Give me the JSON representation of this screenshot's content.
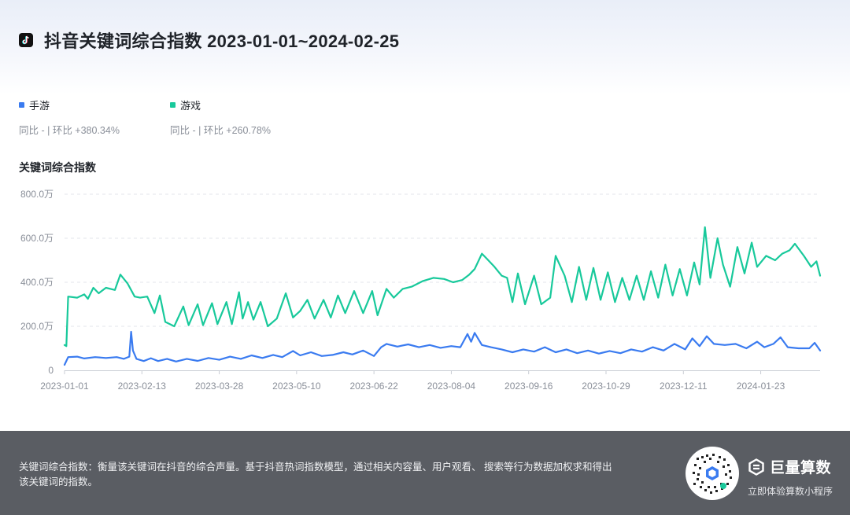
{
  "header": {
    "title": "抖音关键词综合指数 2023-01-01~2024-02-25"
  },
  "legend": [
    {
      "name": "手游",
      "color": "#3a7bf0",
      "stats": "同比 - | 环比 +380.34%"
    },
    {
      "name": "游戏",
      "color": "#18c99b",
      "stats": "同比 - | 环比 +260.78%"
    }
  ],
  "chart_data": {
    "type": "line",
    "ylabel": "关键词综合指数",
    "ylim": [
      0,
      8000000
    ],
    "y_ticks": [
      0,
      2000000,
      4000000,
      6000000,
      8000000
    ],
    "y_tick_labels": [
      "0",
      "200.0万",
      "400.0万",
      "600.0万",
      "800.0万"
    ],
    "x_start": "2023-01-01",
    "x_end": "2024-02-25",
    "x_tick_labels": [
      "2023-01-01",
      "2023-02-13",
      "2023-03-28",
      "2023-05-10",
      "2023-06-22",
      "2023-08-04",
      "2023-09-16",
      "2023-10-29",
      "2023-12-11",
      "2024-01-23"
    ],
    "grid": true,
    "series": [
      {
        "name": "手游",
        "color": "#3a7bf0",
        "points": [
          [
            "2023-01-01",
            250000
          ],
          [
            "2023-01-03",
            600000
          ],
          [
            "2023-01-08",
            620000
          ],
          [
            "2023-01-12",
            540000
          ],
          [
            "2023-01-18",
            600000
          ],
          [
            "2023-01-24",
            560000
          ],
          [
            "2023-01-30",
            600000
          ],
          [
            "2023-02-03",
            520000
          ],
          [
            "2023-02-06",
            620000
          ],
          [
            "2023-02-07",
            1750000
          ],
          [
            "2023-02-08",
            900000
          ],
          [
            "2023-02-10",
            520000
          ],
          [
            "2023-02-14",
            420000
          ],
          [
            "2023-02-18",
            550000
          ],
          [
            "2023-02-22",
            420000
          ],
          [
            "2023-02-27",
            520000
          ],
          [
            "2023-03-04",
            400000
          ],
          [
            "2023-03-10",
            520000
          ],
          [
            "2023-03-16",
            430000
          ],
          [
            "2023-03-22",
            560000
          ],
          [
            "2023-03-28",
            480000
          ],
          [
            "2023-04-03",
            620000
          ],
          [
            "2023-04-09",
            520000
          ],
          [
            "2023-04-15",
            680000
          ],
          [
            "2023-04-21",
            560000
          ],
          [
            "2023-04-27",
            700000
          ],
          [
            "2023-05-02",
            600000
          ],
          [
            "2023-05-08",
            880000
          ],
          [
            "2023-05-12",
            680000
          ],
          [
            "2023-05-18",
            820000
          ],
          [
            "2023-05-24",
            650000
          ],
          [
            "2023-05-30",
            700000
          ],
          [
            "2023-06-05",
            820000
          ],
          [
            "2023-06-10",
            720000
          ],
          [
            "2023-06-16",
            900000
          ],
          [
            "2023-06-22",
            650000
          ],
          [
            "2023-06-26",
            1050000
          ],
          [
            "2023-06-29",
            1200000
          ],
          [
            "2023-07-05",
            1080000
          ],
          [
            "2023-07-11",
            1180000
          ],
          [
            "2023-07-17",
            1050000
          ],
          [
            "2023-07-23",
            1150000
          ],
          [
            "2023-07-29",
            1020000
          ],
          [
            "2023-08-04",
            1100000
          ],
          [
            "2023-08-09",
            1050000
          ],
          [
            "2023-08-13",
            1650000
          ],
          [
            "2023-08-15",
            1300000
          ],
          [
            "2023-08-17",
            1700000
          ],
          [
            "2023-08-21",
            1150000
          ],
          [
            "2023-08-26",
            1050000
          ],
          [
            "2023-09-01",
            950000
          ],
          [
            "2023-09-07",
            820000
          ],
          [
            "2023-09-13",
            950000
          ],
          [
            "2023-09-19",
            850000
          ],
          [
            "2023-09-25",
            1050000
          ],
          [
            "2023-10-01",
            820000
          ],
          [
            "2023-10-07",
            950000
          ],
          [
            "2023-10-13",
            780000
          ],
          [
            "2023-10-19",
            900000
          ],
          [
            "2023-10-25",
            760000
          ],
          [
            "2023-10-31",
            880000
          ],
          [
            "2023-11-06",
            780000
          ],
          [
            "2023-11-12",
            950000
          ],
          [
            "2023-11-18",
            850000
          ],
          [
            "2023-11-24",
            1050000
          ],
          [
            "2023-11-30",
            900000
          ],
          [
            "2023-12-06",
            1200000
          ],
          [
            "2023-12-12",
            950000
          ],
          [
            "2023-12-16",
            1450000
          ],
          [
            "2023-12-20",
            1100000
          ],
          [
            "2023-12-24",
            1550000
          ],
          [
            "2023-12-28",
            1200000
          ],
          [
            "2024-01-03",
            1150000
          ],
          [
            "2024-01-09",
            1200000
          ],
          [
            "2024-01-15",
            1000000
          ],
          [
            "2024-01-21",
            1300000
          ],
          [
            "2024-01-25",
            1050000
          ],
          [
            "2024-01-30",
            1200000
          ],
          [
            "2024-02-03",
            1500000
          ],
          [
            "2024-02-07",
            1050000
          ],
          [
            "2024-02-13",
            1000000
          ],
          [
            "2024-02-19",
            1000000
          ],
          [
            "2024-02-22",
            1250000
          ],
          [
            "2024-02-25",
            900000
          ]
        ]
      },
      {
        "name": "游戏",
        "color": "#18c99b",
        "points": [
          [
            "2023-01-01",
            1150000
          ],
          [
            "2023-01-02",
            1100000
          ],
          [
            "2023-01-03",
            3350000
          ],
          [
            "2023-01-08",
            3300000
          ],
          [
            "2023-01-12",
            3450000
          ],
          [
            "2023-01-14",
            3250000
          ],
          [
            "2023-01-17",
            3750000
          ],
          [
            "2023-01-20",
            3500000
          ],
          [
            "2023-01-24",
            3750000
          ],
          [
            "2023-01-29",
            3650000
          ],
          [
            "2023-02-01",
            4350000
          ],
          [
            "2023-02-05",
            3950000
          ],
          [
            "2023-02-09",
            3350000
          ],
          [
            "2023-02-12",
            3300000
          ],
          [
            "2023-02-16",
            3350000
          ],
          [
            "2023-02-20",
            2600000
          ],
          [
            "2023-02-23",
            3400000
          ],
          [
            "2023-02-26",
            2200000
          ],
          [
            "2023-03-03",
            2000000
          ],
          [
            "2023-03-08",
            2900000
          ],
          [
            "2023-03-11",
            2050000
          ],
          [
            "2023-03-16",
            3000000
          ],
          [
            "2023-03-19",
            2050000
          ],
          [
            "2023-03-24",
            3050000
          ],
          [
            "2023-03-27",
            2100000
          ],
          [
            "2023-04-01",
            3100000
          ],
          [
            "2023-04-04",
            2100000
          ],
          [
            "2023-04-08",
            3550000
          ],
          [
            "2023-04-10",
            2350000
          ],
          [
            "2023-04-13",
            3100000
          ],
          [
            "2023-04-16",
            2300000
          ],
          [
            "2023-04-20",
            3100000
          ],
          [
            "2023-04-24",
            2000000
          ],
          [
            "2023-04-29",
            2350000
          ],
          [
            "2023-05-04",
            3500000
          ],
          [
            "2023-05-08",
            2400000
          ],
          [
            "2023-05-12",
            2700000
          ],
          [
            "2023-05-16",
            3200000
          ],
          [
            "2023-05-20",
            2350000
          ],
          [
            "2023-05-25",
            3200000
          ],
          [
            "2023-05-29",
            2400000
          ],
          [
            "2023-06-02",
            3400000
          ],
          [
            "2023-06-06",
            2600000
          ],
          [
            "2023-06-11",
            3600000
          ],
          [
            "2023-06-16",
            2600000
          ],
          [
            "2023-06-21",
            3600000
          ],
          [
            "2023-06-24",
            2500000
          ],
          [
            "2023-06-29",
            3700000
          ],
          [
            "2023-07-03",
            3300000
          ],
          [
            "2023-07-08",
            3700000
          ],
          [
            "2023-07-13",
            3800000
          ],
          [
            "2023-07-19",
            4050000
          ],
          [
            "2023-07-25",
            4200000
          ],
          [
            "2023-07-31",
            4150000
          ],
          [
            "2023-08-05",
            4000000
          ],
          [
            "2023-08-10",
            4100000
          ],
          [
            "2023-08-14",
            4350000
          ],
          [
            "2023-08-17",
            4600000
          ],
          [
            "2023-08-21",
            5300000
          ],
          [
            "2023-08-24",
            5050000
          ],
          [
            "2023-08-28",
            4700000
          ],
          [
            "2023-09-01",
            4300000
          ],
          [
            "2023-09-04",
            4200000
          ],
          [
            "2023-09-07",
            3100000
          ],
          [
            "2023-09-10",
            4400000
          ],
          [
            "2023-09-14",
            3000000
          ],
          [
            "2023-09-19",
            4300000
          ],
          [
            "2023-09-23",
            3000000
          ],
          [
            "2023-09-28",
            3300000
          ],
          [
            "2023-10-01",
            5200000
          ],
          [
            "2023-10-06",
            4300000
          ],
          [
            "2023-10-10",
            3100000
          ],
          [
            "2023-10-14",
            4700000
          ],
          [
            "2023-10-18",
            3200000
          ],
          [
            "2023-10-22",
            4650000
          ],
          [
            "2023-10-26",
            3200000
          ],
          [
            "2023-10-30",
            4450000
          ],
          [
            "2023-11-03",
            3100000
          ],
          [
            "2023-11-07",
            4200000
          ],
          [
            "2023-11-11",
            3200000
          ],
          [
            "2023-11-15",
            4300000
          ],
          [
            "2023-11-19",
            3200000
          ],
          [
            "2023-11-23",
            4500000
          ],
          [
            "2023-11-27",
            3300000
          ],
          [
            "2023-12-01",
            4800000
          ],
          [
            "2023-12-05",
            3400000
          ],
          [
            "2023-12-09",
            4600000
          ],
          [
            "2023-12-13",
            3400000
          ],
          [
            "2023-12-17",
            4900000
          ],
          [
            "2023-12-20",
            3900000
          ],
          [
            "2023-12-23",
            6500000
          ],
          [
            "2023-12-26",
            4200000
          ],
          [
            "2023-12-30",
            6000000
          ],
          [
            "2024-01-02",
            4800000
          ],
          [
            "2024-01-06",
            3800000
          ],
          [
            "2024-01-10",
            5600000
          ],
          [
            "2024-01-14",
            4400000
          ],
          [
            "2024-01-18",
            5800000
          ],
          [
            "2024-01-21",
            4700000
          ],
          [
            "2024-01-26",
            5200000
          ],
          [
            "2024-01-31",
            5000000
          ],
          [
            "2024-02-04",
            5300000
          ],
          [
            "2024-02-08",
            5450000
          ],
          [
            "2024-02-11",
            5750000
          ],
          [
            "2024-02-16",
            5200000
          ],
          [
            "2024-02-20",
            4700000
          ],
          [
            "2024-02-23",
            4950000
          ],
          [
            "2024-02-25",
            4300000
          ]
        ]
      }
    ]
  },
  "footer": {
    "description": "关键词综合指数：衡量该关键词在抖音的综合声量。基于抖音热词指数模型，通过相关内容量、用户观看、 搜索等行为数据加权求和得出该关键词的指数。",
    "brand_name": "巨量算数",
    "brand_tagline": "立即体验算数小程序"
  }
}
